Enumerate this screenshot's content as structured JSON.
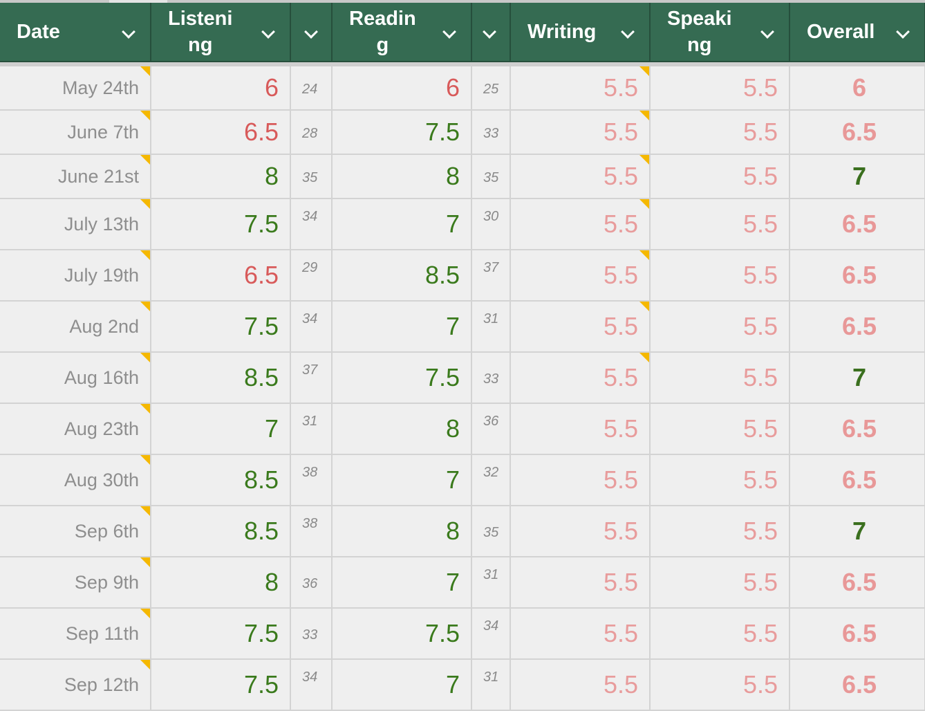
{
  "columns": [
    {
      "label": "Date",
      "kind": "date"
    },
    {
      "label": "Listeni ng",
      "line1": "Listeni",
      "line2": "ng",
      "kind": "score"
    },
    {
      "label": "",
      "kind": "raw"
    },
    {
      "label": "Readin g",
      "line1": "Readin",
      "line2": "g",
      "kind": "score"
    },
    {
      "label": "",
      "kind": "raw"
    },
    {
      "label": "Writing",
      "kind": "score"
    },
    {
      "label": "Speaki ng",
      "line1": "Speaki",
      "line2": "ng",
      "kind": "score"
    },
    {
      "label": "Overall",
      "kind": "score"
    }
  ],
  "colors": {
    "header_bg": "#356b52",
    "low_score": "#d85a5a",
    "high_score": "#3a7a1c",
    "muted_score": "#e89c9c",
    "note_marker": "#f5b800"
  },
  "rows": [
    {
      "date": "May 24th",
      "listening": "6",
      "listening_raw": "24",
      "reading": "6",
      "reading_raw": "25",
      "writing": "5.5",
      "speaking": "5.5",
      "overall": "6",
      "l_tone": "red",
      "r_tone": "red",
      "o_tone": "pink",
      "lr_pos": "mid",
      "rr_pos": "mid",
      "note_date": true,
      "note_writing": true
    },
    {
      "date": "June 7th",
      "listening": "6.5",
      "listening_raw": "28",
      "reading": "7.5",
      "reading_raw": "33",
      "writing": "5.5",
      "speaking": "5.5",
      "overall": "6.5",
      "l_tone": "red",
      "r_tone": "green",
      "o_tone": "pink",
      "lr_pos": "mid",
      "rr_pos": "mid",
      "note_date": true,
      "note_writing": true
    },
    {
      "date": "June 21st",
      "listening": "8",
      "listening_raw": "35",
      "reading": "8",
      "reading_raw": "35",
      "writing": "5.5",
      "speaking": "5.5",
      "overall": "7",
      "l_tone": "green",
      "r_tone": "green",
      "o_tone": "green",
      "lr_pos": "mid",
      "rr_pos": "mid",
      "note_date": true,
      "note_writing": true
    },
    {
      "date": "July 13th",
      "listening": "7.5",
      "listening_raw": "34",
      "reading": "7",
      "reading_raw": "30",
      "writing": "5.5",
      "speaking": "5.5",
      "overall": "6.5",
      "l_tone": "green",
      "r_tone": "green",
      "o_tone": "pink",
      "lr_pos": "top",
      "rr_pos": "top",
      "note_date": true,
      "note_writing": true
    },
    {
      "date": "July 19th",
      "listening": "6.5",
      "listening_raw": "29",
      "reading": "8.5",
      "reading_raw": "37",
      "writing": "5.5",
      "speaking": "5.5",
      "overall": "6.5",
      "l_tone": "red",
      "r_tone": "green",
      "o_tone": "pink",
      "lr_pos": "top",
      "rr_pos": "top",
      "note_date": true,
      "note_writing": true
    },
    {
      "date": "Aug 2nd",
      "listening": "7.5",
      "listening_raw": "34",
      "reading": "7",
      "reading_raw": "31",
      "writing": "5.5",
      "speaking": "5.5",
      "overall": "6.5",
      "l_tone": "green",
      "r_tone": "green",
      "o_tone": "pink",
      "lr_pos": "top",
      "rr_pos": "top",
      "note_date": true,
      "note_writing": true
    },
    {
      "date": "Aug 16th",
      "listening": "8.5",
      "listening_raw": "37",
      "reading": "7.5",
      "reading_raw": "33",
      "writing": "5.5",
      "speaking": "5.5",
      "overall": "7",
      "l_tone": "green",
      "r_tone": "green",
      "o_tone": "green",
      "lr_pos": "top",
      "rr_pos": "mid",
      "note_date": true,
      "note_writing": true
    },
    {
      "date": "Aug 23th",
      "listening": "7",
      "listening_raw": "31",
      "reading": "8",
      "reading_raw": "36",
      "writing": "5.5",
      "speaking": "5.5",
      "overall": "6.5",
      "l_tone": "green",
      "r_tone": "green",
      "o_tone": "pink",
      "lr_pos": "top",
      "rr_pos": "top",
      "note_date": true,
      "note_writing": false
    },
    {
      "date": "Aug 30th",
      "listening": "8.5",
      "listening_raw": "38",
      "reading": "7",
      "reading_raw": "32",
      "writing": "5.5",
      "speaking": "5.5",
      "overall": "6.5",
      "l_tone": "green",
      "r_tone": "green",
      "o_tone": "pink",
      "lr_pos": "top",
      "rr_pos": "top",
      "note_date": true,
      "note_writing": false
    },
    {
      "date": "Sep 6th",
      "listening": "8.5",
      "listening_raw": "38",
      "reading": "8",
      "reading_raw": "35",
      "writing": "5.5",
      "speaking": "5.5",
      "overall": "7",
      "l_tone": "green",
      "r_tone": "green",
      "o_tone": "green",
      "lr_pos": "top",
      "rr_pos": "mid",
      "note_date": true,
      "note_writing": false
    },
    {
      "date": "Sep 9th",
      "listening": "8",
      "listening_raw": "36",
      "reading": "7",
      "reading_raw": "31",
      "writing": "5.5",
      "speaking": "5.5",
      "overall": "6.5",
      "l_tone": "green",
      "r_tone": "green",
      "o_tone": "pink",
      "lr_pos": "mid",
      "rr_pos": "top",
      "note_date": true,
      "note_writing": false
    },
    {
      "date": "Sep 11th",
      "listening": "7.5",
      "listening_raw": "33",
      "reading": "7.5",
      "reading_raw": "34",
      "writing": "5.5",
      "speaking": "5.5",
      "overall": "6.5",
      "l_tone": "green",
      "r_tone": "green",
      "o_tone": "pink",
      "lr_pos": "mid",
      "rr_pos": "top",
      "note_date": true,
      "note_writing": false
    },
    {
      "date": "Sep 12th",
      "listening": "7.5",
      "listening_raw": "34",
      "reading": "7",
      "reading_raw": "31",
      "writing": "5.5",
      "speaking": "5.5",
      "overall": "6.5",
      "l_tone": "green",
      "r_tone": "green",
      "o_tone": "pink",
      "lr_pos": "top",
      "rr_pos": "top",
      "note_date": true,
      "note_writing": false
    }
  ]
}
